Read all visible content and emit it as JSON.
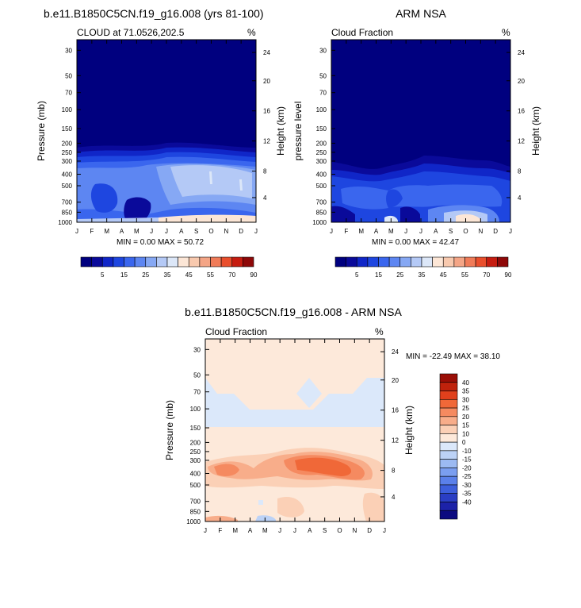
{
  "chart_data": [
    {
      "type": "heatmap",
      "title": "b.e11.B1850C5CN.f19_g16.008 (yrs 81-100)",
      "subtitle_left": "CLOUD at 71.0526,202.5",
      "subtitle_right": "%",
      "ylabel": "Pressure (mb)",
      "ylabel_right": "Height (km)",
      "x_ticks": [
        "J",
        "F",
        "M",
        "A",
        "M",
        "J",
        "J",
        "A",
        "S",
        "O",
        "N",
        "D",
        "J"
      ],
      "y_ticks": [
        "30",
        "50",
        "70",
        "100",
        "150",
        "200",
        "250",
        "300",
        "400",
        "500",
        "700",
        "850",
        "1000"
      ],
      "y_right_ticks": [
        "24",
        "20",
        "16",
        "12",
        "8",
        "4"
      ],
      "stats": "MIN =   0.00 MAX =  50.72",
      "levels": [
        "5",
        "15",
        "25",
        "35",
        "45",
        "55",
        "70",
        "90"
      ],
      "colors": [
        "#00007f",
        "#0a0a9a",
        "#1026c8",
        "#1e46e0",
        "#3a66ee",
        "#5d86f2",
        "#86a8f4",
        "#b4c9f6",
        "#dce7f8",
        "#fce6d6",
        "#f8c9ae",
        "#f4a586",
        "#f07b58",
        "#e94e2c",
        "#c61c10",
        "#8e0808"
      ]
    },
    {
      "type": "heatmap",
      "title": "ARM NSA",
      "subtitle_left": "Cloud Fraction",
      "subtitle_right": "%",
      "ylabel": "pressure level",
      "ylabel_right": "Height (km)",
      "x_ticks": [
        "J",
        "F",
        "M",
        "A",
        "M",
        "J",
        "J",
        "A",
        "S",
        "O",
        "N",
        "D",
        "J"
      ],
      "y_ticks": [
        "30",
        "50",
        "70",
        "100",
        "150",
        "200",
        "250",
        "300",
        "400",
        "500",
        "700",
        "850",
        "1000"
      ],
      "y_right_ticks": [
        "24",
        "20",
        "16",
        "12",
        "8",
        "4"
      ],
      "stats": "MIN =   0.00 MAX =  42.47",
      "levels": [
        "5",
        "15",
        "25",
        "35",
        "45",
        "55",
        "70",
        "90"
      ]
    },
    {
      "type": "heatmap",
      "title": "b.e11.B1850C5CN.f19_g16.008 - ARM NSA",
      "subtitle_left": "Cloud Fraction",
      "subtitle_right": "%",
      "ylabel": "Pressure (mb)",
      "ylabel_right": "Height (km)",
      "x_ticks": [
        "J",
        "F",
        "M",
        "A",
        "M",
        "J",
        "J",
        "A",
        "S",
        "O",
        "N",
        "D",
        "J"
      ],
      "y_ticks": [
        "30",
        "50",
        "70",
        "100",
        "150",
        "200",
        "250",
        "300",
        "400",
        "500",
        "700",
        "850",
        "1000"
      ],
      "y_right_ticks": [
        "24",
        "20",
        "16",
        "12",
        "8",
        "4"
      ],
      "stats": "MIN = -22.49 MAX =  38.10",
      "levels": [
        "40",
        "35",
        "30",
        "25",
        "20",
        "15",
        "10",
        "0",
        "-10",
        "-15",
        "-20",
        "-25",
        "-30",
        "-35",
        "-40"
      ],
      "colors": [
        "#9a0e06",
        "#bf220c",
        "#e0401c",
        "#f06838",
        "#f58a60",
        "#f8ad8a",
        "#fbd0b6",
        "#fde9da",
        "#dbe8fa",
        "#bcd2f6",
        "#9cbaf2",
        "#7a9ef0",
        "#5a80ea",
        "#3d5fdc",
        "#2a3ec4",
        "#1c22a8",
        "#0c0a80"
      ]
    }
  ]
}
